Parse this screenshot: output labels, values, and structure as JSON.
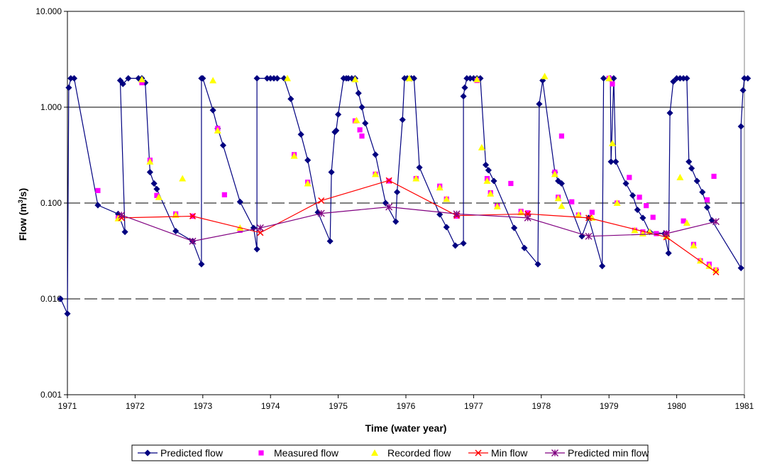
{
  "chart_data": {
    "type": "line",
    "xlabel": "Time (water year)",
    "ylabel_main": "Flow (m",
    "ylabel_sup": "3",
    "ylabel_tail": "/s)",
    "x_scale": "linear",
    "y_scale": "log",
    "xlim": [
      1971,
      1981
    ],
    "ylim": [
      0.001,
      10
    ],
    "x_ticks": [
      1971,
      1972,
      1973,
      1974,
      1975,
      1976,
      1977,
      1978,
      1979,
      1980,
      1981
    ],
    "x_tick_labels": [
      "1971",
      "1972",
      "1973",
      "1974",
      "1975",
      "1976",
      "1977",
      "1978",
      "1979",
      "1980",
      "1981"
    ],
    "y_ticks": [
      0.001,
      0.01,
      0.1,
      1,
      10
    ],
    "y_tick_labels": [
      "0.001",
      "0.010",
      "0.100",
      "1.000",
      "10.000"
    ],
    "gridlines": [
      {
        "y": 10,
        "style": "solid"
      },
      {
        "y": 1,
        "style": "solid"
      },
      {
        "y": 0.1,
        "style": "dashed"
      },
      {
        "y": 0.01,
        "style": "dashed"
      }
    ],
    "legend_position": "bottom",
    "colors": {
      "predicted": "#000080",
      "measured": "#ff00ff",
      "recorded": "#ffff00",
      "min": "#ff0000",
      "predicted_min": "#800080",
      "grid": "#000000",
      "axis": "#000000"
    },
    "series": [
      {
        "name": "Predicted flow",
        "kind": "line-marker",
        "marker": "diamond",
        "color": "#000080",
        "points": [
          [
            1970.9,
            0.01
          ],
          [
            1971.0,
            0.007
          ],
          [
            1971.02,
            1.6
          ],
          [
            1971.05,
            2.0
          ],
          [
            1971.1,
            2.0
          ],
          [
            1971.45,
            0.095
          ],
          [
            1971.75,
            0.077
          ],
          [
            1971.85,
            0.05
          ],
          [
            1971.78,
            1.9
          ],
          [
            1971.82,
            1.75
          ],
          [
            1971.9,
            2.0
          ],
          [
            1972.05,
            2.0
          ],
          [
            1972.1,
            2.0
          ],
          [
            1972.15,
            1.8
          ],
          [
            1972.22,
            0.21
          ],
          [
            1972.28,
            0.16
          ],
          [
            1972.32,
            0.14
          ],
          [
            1972.6,
            0.051
          ],
          [
            1972.85,
            0.04
          ],
          [
            1972.98,
            0.023
          ],
          [
            1972.98,
            2.0
          ],
          [
            1973.0,
            2.0
          ],
          [
            1973.15,
            0.93
          ],
          [
            1973.22,
            0.6
          ],
          [
            1973.3,
            0.4
          ],
          [
            1973.55,
            0.103
          ],
          [
            1973.75,
            0.055
          ],
          [
            1973.8,
            0.033
          ],
          [
            1973.8,
            2.0
          ],
          [
            1973.95,
            2.0
          ],
          [
            1974.0,
            2.0
          ],
          [
            1974.05,
            2.0
          ],
          [
            1974.1,
            2.0
          ],
          [
            1974.2,
            2.0
          ],
          [
            1974.3,
            1.22
          ],
          [
            1974.45,
            0.52
          ],
          [
            1974.55,
            0.28
          ],
          [
            1974.7,
            0.08
          ],
          [
            1974.88,
            0.04
          ],
          [
            1974.9,
            0.21
          ],
          [
            1974.95,
            0.55
          ],
          [
            1974.97,
            0.57
          ],
          [
            1975.0,
            0.84
          ],
          [
            1975.08,
            2.0
          ],
          [
            1975.12,
            2.0
          ],
          [
            1975.15,
            2.0
          ],
          [
            1975.2,
            2.0
          ],
          [
            1975.25,
            2.0
          ],
          [
            1975.3,
            1.4
          ],
          [
            1975.35,
            1.0
          ],
          [
            1975.4,
            0.68
          ],
          [
            1975.55,
            0.32
          ],
          [
            1975.7,
            0.1
          ],
          [
            1975.85,
            0.064
          ],
          [
            1975.87,
            0.13
          ],
          [
            1975.95,
            0.74
          ],
          [
            1975.98,
            2.0
          ],
          [
            1976.02,
            2.0
          ],
          [
            1976.08,
            2.0
          ],
          [
            1976.12,
            2.0
          ],
          [
            1976.2,
            0.235
          ],
          [
            1976.5,
            0.076
          ],
          [
            1976.6,
            0.056
          ],
          [
            1976.73,
            0.036
          ],
          [
            1976.85,
            0.038
          ],
          [
            1976.85,
            1.3
          ],
          [
            1976.87,
            1.6
          ],
          [
            1976.9,
            2.0
          ],
          [
            1976.95,
            2.0
          ],
          [
            1977.0,
            2.0
          ],
          [
            1977.05,
            2.0
          ],
          [
            1977.1,
            2.0
          ],
          [
            1977.18,
            0.25
          ],
          [
            1977.22,
            0.22
          ],
          [
            1977.3,
            0.17
          ],
          [
            1977.6,
            0.055
          ],
          [
            1977.75,
            0.034
          ],
          [
            1977.95,
            0.023
          ],
          [
            1977.97,
            1.08
          ],
          [
            1978.02,
            1.9
          ],
          [
            1978.2,
            0.21
          ],
          [
            1978.25,
            0.17
          ],
          [
            1978.3,
            0.16
          ],
          [
            1978.6,
            0.045
          ],
          [
            1978.7,
            0.07
          ],
          [
            1978.9,
            0.022
          ],
          [
            1978.92,
            2.0
          ],
          [
            1979.0,
            2.0
          ],
          [
            1979.02,
            2.0
          ],
          [
            1979.03,
            0.27
          ],
          [
            1979.07,
            2.0
          ],
          [
            1979.1,
            0.27
          ],
          [
            1979.25,
            0.16
          ],
          [
            1979.35,
            0.12
          ],
          [
            1979.42,
            0.085
          ],
          [
            1979.5,
            0.07
          ],
          [
            1979.6,
            0.05
          ],
          [
            1979.82,
            0.048
          ],
          [
            1979.88,
            0.03
          ],
          [
            1979.9,
            0.87
          ],
          [
            1979.95,
            1.85
          ],
          [
            1980.0,
            2.0
          ],
          [
            1980.05,
            2.0
          ],
          [
            1980.1,
            2.0
          ],
          [
            1980.15,
            2.0
          ],
          [
            1980.18,
            0.27
          ],
          [
            1980.22,
            0.23
          ],
          [
            1980.3,
            0.17
          ],
          [
            1980.38,
            0.13
          ],
          [
            1980.45,
            0.09
          ],
          [
            1980.52,
            0.066
          ],
          [
            1980.95,
            0.021
          ],
          [
            1980.95,
            0.63
          ],
          [
            1980.98,
            1.5
          ],
          [
            1981.0,
            2.0
          ],
          [
            1981.05,
            2.0
          ]
        ]
      },
      {
        "name": "Measured flow",
        "kind": "marker",
        "marker": "square",
        "color": "#ff00ff",
        "points": [
          [
            1971.45,
            0.135
          ],
          [
            1971.75,
            0.07
          ],
          [
            1972.1,
            1.8
          ],
          [
            1972.22,
            0.28
          ],
          [
            1972.32,
            0.12
          ],
          [
            1972.6,
            0.077
          ],
          [
            1972.85,
            0.073
          ],
          [
            1973.22,
            0.6
          ],
          [
            1973.32,
            0.122
          ],
          [
            1973.55,
            0.052
          ],
          [
            1974.35,
            0.32
          ],
          [
            1974.55,
            0.165
          ],
          [
            1975.25,
            0.72
          ],
          [
            1975.32,
            0.58
          ],
          [
            1975.35,
            0.5
          ],
          [
            1975.55,
            0.2
          ],
          [
            1975.75,
            0.17
          ],
          [
            1976.15,
            0.18
          ],
          [
            1976.5,
            0.15
          ],
          [
            1976.6,
            0.11
          ],
          [
            1976.75,
            0.073
          ],
          [
            1977.05,
            1.9
          ],
          [
            1977.2,
            0.18
          ],
          [
            1977.25,
            0.128
          ],
          [
            1977.35,
            0.093
          ],
          [
            1977.55,
            0.16
          ],
          [
            1977.7,
            0.082
          ],
          [
            1977.8,
            0.079
          ],
          [
            1978.2,
            0.21
          ],
          [
            1978.25,
            0.115
          ],
          [
            1978.3,
            0.5
          ],
          [
            1978.45,
            0.103
          ],
          [
            1978.55,
            0.075
          ],
          [
            1978.75,
            0.08
          ],
          [
            1979.0,
            2.0
          ],
          [
            1979.05,
            1.75
          ],
          [
            1979.12,
            0.1
          ],
          [
            1979.3,
            0.185
          ],
          [
            1979.38,
            0.052
          ],
          [
            1979.45,
            0.115
          ],
          [
            1979.5,
            0.05
          ],
          [
            1979.55,
            0.094
          ],
          [
            1979.65,
            0.071
          ],
          [
            1979.7,
            0.048
          ],
          [
            1979.85,
            0.048
          ],
          [
            1980.1,
            0.065
          ],
          [
            1980.25,
            0.037
          ],
          [
            1980.35,
            0.025
          ],
          [
            1980.45,
            0.108
          ],
          [
            1980.48,
            0.023
          ],
          [
            1980.55,
            0.19
          ],
          [
            1980.58,
            0.02
          ]
        ]
      },
      {
        "name": "Recorded flow",
        "kind": "marker",
        "marker": "triangle",
        "color": "#ffff00",
        "points": [
          [
            1971.75,
            0.069
          ],
          [
            1972.1,
            1.95
          ],
          [
            1972.22,
            0.27
          ],
          [
            1972.35,
            0.115
          ],
          [
            1972.7,
            0.18
          ],
          [
            1972.6,
            0.075
          ],
          [
            1973.15,
            1.9
          ],
          [
            1973.22,
            0.57
          ],
          [
            1973.55,
            0.055
          ],
          [
            1974.25,
            2.0
          ],
          [
            1974.35,
            0.31
          ],
          [
            1974.55,
            0.16
          ],
          [
            1975.25,
            1.95
          ],
          [
            1975.27,
            0.73
          ],
          [
            1975.55,
            0.2
          ],
          [
            1976.05,
            2.0
          ],
          [
            1976.15,
            0.18
          ],
          [
            1976.5,
            0.145
          ],
          [
            1976.6,
            0.11
          ],
          [
            1977.05,
            1.95
          ],
          [
            1977.12,
            0.38
          ],
          [
            1977.2,
            0.17
          ],
          [
            1977.25,
            0.125
          ],
          [
            1977.35,
            0.092
          ],
          [
            1977.7,
            0.08
          ],
          [
            1978.05,
            2.1
          ],
          [
            1978.2,
            0.2
          ],
          [
            1978.25,
            0.112
          ],
          [
            1978.3,
            0.093
          ],
          [
            1978.55,
            0.075
          ],
          [
            1978.75,
            0.07
          ],
          [
            1979.0,
            2.0
          ],
          [
            1979.05,
            0.42
          ],
          [
            1979.12,
            0.1
          ],
          [
            1979.38,
            0.052
          ],
          [
            1979.5,
            0.048
          ],
          [
            1979.6,
            0.05
          ],
          [
            1979.85,
            0.045
          ],
          [
            1980.05,
            0.185
          ],
          [
            1980.15,
            0.062
          ],
          [
            1980.25,
            0.036
          ],
          [
            1980.35,
            0.025
          ],
          [
            1980.48,
            0.022
          ],
          [
            1980.58,
            0.02
          ]
        ]
      },
      {
        "name": "Min flow",
        "kind": "line-marker",
        "marker": "x",
        "color": "#ff0000",
        "points": [
          [
            1971.8,
            0.07
          ],
          [
            1972.85,
            0.073
          ],
          [
            1973.85,
            0.049
          ],
          [
            1974.75,
            0.106
          ],
          [
            1975.75,
            0.172
          ],
          [
            1976.75,
            0.074
          ],
          [
            1977.8,
            0.077
          ],
          [
            1978.7,
            0.07
          ],
          [
            1979.85,
            0.044
          ],
          [
            1980.58,
            0.019
          ]
        ]
      },
      {
        "name": "Predicted min flow",
        "kind": "line-marker",
        "marker": "star",
        "color": "#800080",
        "points": [
          [
            1971.8,
            0.075
          ],
          [
            1972.85,
            0.04
          ],
          [
            1973.85,
            0.055
          ],
          [
            1974.75,
            0.078
          ],
          [
            1975.75,
            0.091
          ],
          [
            1976.75,
            0.077
          ],
          [
            1977.8,
            0.07
          ],
          [
            1978.7,
            0.045
          ],
          [
            1979.85,
            0.048
          ],
          [
            1980.58,
            0.064
          ]
        ]
      }
    ]
  }
}
